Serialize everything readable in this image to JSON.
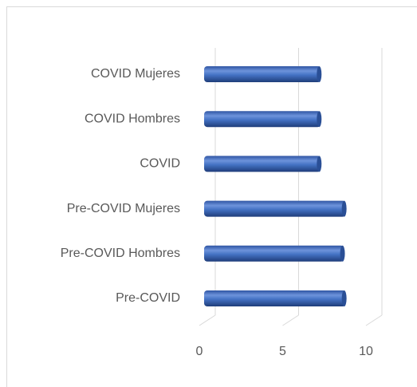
{
  "chart_data": {
    "type": "bar3d",
    "orientation": "horizontal",
    "categories": [
      "Pre-COVID",
      "Pre-COVID Hombres",
      "Pre-COVID Mujeres",
      "COVID",
      "COVID Hombres",
      "COVID Mujeres"
    ],
    "values": [
      8.5,
      8.4,
      8.5,
      7.0,
      7.0,
      7.0
    ],
    "color": "#4472c4",
    "xlim": [
      0,
      10
    ],
    "xticks": [
      0,
      5,
      10
    ],
    "grid": true
  }
}
